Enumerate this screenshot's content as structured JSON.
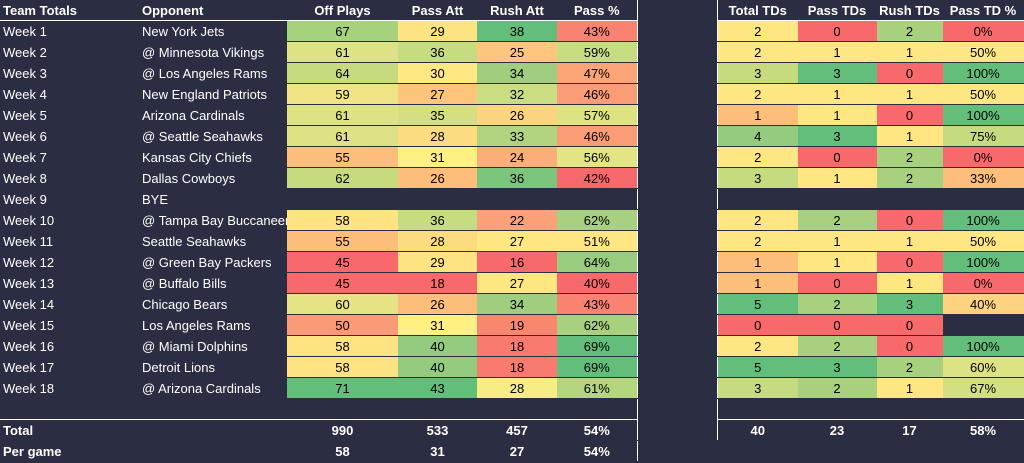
{
  "left_headers": [
    "Team Totals",
    "Opponent",
    "Off Plays",
    "Pass Att",
    "Rush Att",
    "Pass %"
  ],
  "right_headers": [
    "Total TDs",
    "Pass TDs",
    "Rush TDs",
    "Pass TD %"
  ],
  "rows": [
    {
      "week": "Week 1",
      "opp": "New York Jets",
      "off": "67",
      "pass": "29",
      "rush": "38",
      "pct": "43%",
      "ttd": "2",
      "ptd": "0",
      "rtd": "2",
      "ptdp": "0%"
    },
    {
      "week": "Week 2",
      "opp": "@ Minnesota Vikings",
      "off": "61",
      "pass": "36",
      "rush": "25",
      "pct": "59%",
      "ttd": "2",
      "ptd": "1",
      "rtd": "1",
      "ptdp": "50%"
    },
    {
      "week": "Week 3",
      "opp": "@ Los Angeles Rams",
      "off": "64",
      "pass": "30",
      "rush": "34",
      "pct": "47%",
      "ttd": "3",
      "ptd": "3",
      "rtd": "0",
      "ptdp": "100%"
    },
    {
      "week": "Week 4",
      "opp": "New England Patriots",
      "off": "59",
      "pass": "27",
      "rush": "32",
      "pct": "46%",
      "ttd": "2",
      "ptd": "1",
      "rtd": "1",
      "ptdp": "50%"
    },
    {
      "week": "Week 5",
      "opp": "Arizona Cardinals",
      "off": "61",
      "pass": "35",
      "rush": "26",
      "pct": "57%",
      "ttd": "1",
      "ptd": "1",
      "rtd": "0",
      "ptdp": "100%"
    },
    {
      "week": "Week 6",
      "opp": "@ Seattle Seahawks",
      "off": "61",
      "pass": "28",
      "rush": "33",
      "pct": "46%",
      "ttd": "4",
      "ptd": "3",
      "rtd": "1",
      "ptdp": "75%"
    },
    {
      "week": "Week 7",
      "opp": "Kansas City Chiefs",
      "off": "55",
      "pass": "31",
      "rush": "24",
      "pct": "56%",
      "ttd": "2",
      "ptd": "0",
      "rtd": "2",
      "ptdp": "0%"
    },
    {
      "week": "Week 8",
      "opp": "Dallas Cowboys",
      "off": "62",
      "pass": "26",
      "rush": "36",
      "pct": "42%",
      "ttd": "3",
      "ptd": "1",
      "rtd": "2",
      "ptdp": "33%"
    },
    {
      "week": "Week 9",
      "opp": "BYE",
      "off": "",
      "pass": "",
      "rush": "",
      "pct": "",
      "ttd": "",
      "ptd": "",
      "rtd": "",
      "ptdp": ""
    },
    {
      "week": "Week 10",
      "opp": "@ Tampa Bay Buccaneers",
      "off": "58",
      "pass": "36",
      "rush": "22",
      "pct": "62%",
      "ttd": "2",
      "ptd": "2",
      "rtd": "0",
      "ptdp": "100%"
    },
    {
      "week": "Week 11",
      "opp": "Seattle Seahawks",
      "off": "55",
      "pass": "28",
      "rush": "27",
      "pct": "51%",
      "ttd": "2",
      "ptd": "1",
      "rtd": "1",
      "ptdp": "50%"
    },
    {
      "week": "Week 12",
      "opp": "@ Green Bay Packers",
      "off": "45",
      "pass": "29",
      "rush": "16",
      "pct": "64%",
      "ttd": "1",
      "ptd": "1",
      "rtd": "0",
      "ptdp": "100%"
    },
    {
      "week": "Week 13",
      "opp": "@ Buffalo Bills",
      "off": "45",
      "pass": "18",
      "rush": "27",
      "pct": "40%",
      "ttd": "1",
      "ptd": "0",
      "rtd": "1",
      "ptdp": "0%"
    },
    {
      "week": "Week 14",
      "opp": "Chicago Bears",
      "off": "60",
      "pass": "26",
      "rush": "34",
      "pct": "43%",
      "ttd": "5",
      "ptd": "2",
      "rtd": "3",
      "ptdp": "40%"
    },
    {
      "week": "Week 15",
      "opp": "Los Angeles Rams",
      "off": "50",
      "pass": "31",
      "rush": "19",
      "pct": "62%",
      "ttd": "0",
      "ptd": "0",
      "rtd": "0",
      "ptdp": ""
    },
    {
      "week": "Week 16",
      "opp": "@ Miami Dolphins",
      "off": "58",
      "pass": "40",
      "rush": "18",
      "pct": "69%",
      "ttd": "2",
      "ptd": "2",
      "rtd": "0",
      "ptdp": "100%"
    },
    {
      "week": "Week 17",
      "opp": "Detroit Lions",
      "off": "58",
      "pass": "40",
      "rush": "18",
      "pct": "69%",
      "ttd": "5",
      "ptd": "3",
      "rtd": "2",
      "ptdp": "60%"
    },
    {
      "week": "Week 18",
      "opp": "@ Arizona Cardinals",
      "off": "71",
      "pass": "43",
      "rush": "28",
      "pct": "61%",
      "ttd": "3",
      "ptd": "2",
      "rtd": "1",
      "ptdp": "67%"
    }
  ],
  "total": {
    "label": "Total",
    "off": "990",
    "pass": "533",
    "rush": "457",
    "pct": "54%",
    "ttd": "40",
    "ptd": "23",
    "rtd": "17",
    "ptdp": "58%"
  },
  "per_game": {
    "label": "Per game",
    "off": "58",
    "pass": "31",
    "rush": "27",
    "pct": "54%"
  },
  "colors": {
    "background": "#2b2d42",
    "cells": {
      "off": [
        "#a7d27d",
        "#dde284",
        "#c6db80",
        "#eee486",
        "#dde284",
        "#dde284",
        "#fdbd7b",
        "#c6db80",
        "",
        "#fee382",
        "#fdbd7b",
        "#f8696b",
        "#f8696b",
        "#e5e383",
        "#fb9a77",
        "#fee382",
        "#fee382",
        "#63be7b"
      ],
      "pass": [
        "#fee382",
        "#c6dc81",
        "#fee883",
        "#fdc47c",
        "#d4df82",
        "#fddc81",
        "#fff084",
        "#fdbd7b",
        "",
        "#c6dc81",
        "#fddc81",
        "#fee382",
        "#f8696b",
        "#fdbd7b",
        "#fff084",
        "#94cb7e",
        "#94cb7e",
        "#63be7b"
      ],
      "rush": [
        "#63be7b",
        "#fdc57d",
        "#a0cd7e",
        "#cbdd82",
        "#fdd480",
        "#b2d37f",
        "#fcae79",
        "#7cc57c",
        "",
        "#fba077",
        "#fee683",
        "#f8696b",
        "#fee683",
        "#a0cd7e",
        "#f98770",
        "#f97b6f",
        "#f97b6f",
        "#f8ed84"
      ],
      "pct": [
        "#f98370",
        "#c8dc81",
        "#fba577",
        "#fa9c75",
        "#ddE283",
        "#fa9c75",
        "#e3e483",
        "#f8696b",
        "",
        "#a7d07f",
        "#fee683",
        "#9acc7e",
        "#f8696b",
        "#f98370",
        "#a7d07f",
        "#63be7b",
        "#63be7b",
        "#b4d680"
      ],
      "ttd": [
        "#fee683",
        "#fee683",
        "#c6db80",
        "#fee683",
        "#fdbd7b",
        "#94cb7e",
        "#fee683",
        "#c6db80",
        "",
        "#fee683",
        "#fee683",
        "#fdbd7b",
        "#fdbd7b",
        "#63be7b",
        "#f8696b",
        "#fee683",
        "#63be7b",
        "#c6db80"
      ],
      "ptd": [
        "#f8696b",
        "#fee683",
        "#63be7b",
        "#fee683",
        "#fee683",
        "#63be7b",
        "#f8696b",
        "#fee683",
        "",
        "#a7d07f",
        "#fee683",
        "#fee683",
        "#f8696b",
        "#a7d07f",
        "#f8696b",
        "#a7d07f",
        "#63be7b",
        "#a7d07f"
      ],
      "rtd": [
        "#a7d07f",
        "#fee683",
        "#f8696b",
        "#fee683",
        "#f8696b",
        "#fee683",
        "#a7d07f",
        "#a7d07f",
        "",
        "#f8696b",
        "#fee683",
        "#f8696b",
        "#fee683",
        "#63be7b",
        "#f8696b",
        "#f8696b",
        "#a7d07f",
        "#fee683"
      ],
      "ptdp": [
        "#f8696b",
        "#fee683",
        "#63be7b",
        "#fee683",
        "#63be7b",
        "#c6db80",
        "#f8696b",
        "#fdbd7b",
        "",
        "#63be7b",
        "#fee683",
        "#63be7b",
        "#f8696b",
        "#fdd280",
        "",
        "#63be7b",
        "#dde284",
        "#d4df82"
      ]
    }
  }
}
